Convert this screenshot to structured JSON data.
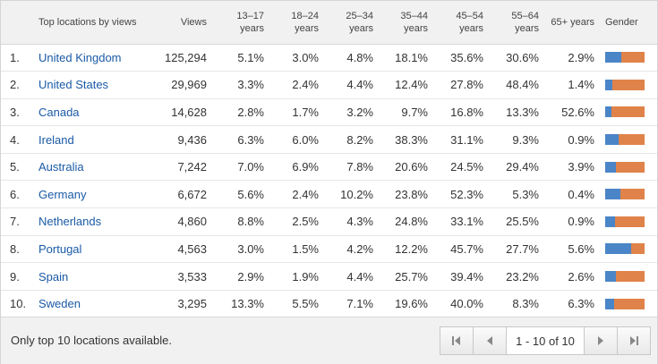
{
  "headers": {
    "location": "Top locations by views",
    "views": "Views",
    "age_13_17": "13–17 years",
    "age_18_24": "18–24 years",
    "age_25_34": "25–34 years",
    "age_35_44": "35–44 years",
    "age_45_54": "45–54 years",
    "age_55_64": "55–64 years",
    "age_65": "65+ years",
    "gender": "Gender"
  },
  "colors": {
    "male": "#4a85c7",
    "female": "#e0834a",
    "link": "#1a5aa6"
  },
  "rows": [
    {
      "rank": "1.",
      "country": "United Kingdom",
      "views": "125,294",
      "a1": "5.1%",
      "a2": "3.0%",
      "a3": "4.8%",
      "a4": "18.1%",
      "a5": "35.6%",
      "a6": "30.6%",
      "a7": "2.9%",
      "male_share": 0.42
    },
    {
      "rank": "2.",
      "country": "United States",
      "views": "29,969",
      "a1": "3.3%",
      "a2": "2.4%",
      "a3": "4.4%",
      "a4": "12.4%",
      "a5": "27.8%",
      "a6": "48.4%",
      "a7": "1.4%",
      "male_share": 0.18
    },
    {
      "rank": "3.",
      "country": "Canada",
      "views": "14,628",
      "a1": "2.8%",
      "a2": "1.7%",
      "a3": "3.2%",
      "a4": "9.7%",
      "a5": "16.8%",
      "a6": "13.3%",
      "a7": "52.6%",
      "male_share": 0.16
    },
    {
      "rank": "4.",
      "country": "Ireland",
      "views": "9,436",
      "a1": "6.3%",
      "a2": "6.0%",
      "a3": "8.2%",
      "a4": "38.3%",
      "a5": "31.1%",
      "a6": "9.3%",
      "a7": "0.9%",
      "male_share": 0.33
    },
    {
      "rank": "5.",
      "country": "Australia",
      "views": "7,242",
      "a1": "7.0%",
      "a2": "6.9%",
      "a3": "7.8%",
      "a4": "20.6%",
      "a5": "24.5%",
      "a6": "29.4%",
      "a7": "3.9%",
      "male_share": 0.27
    },
    {
      "rank": "6.",
      "country": "Germany",
      "views": "6,672",
      "a1": "5.6%",
      "a2": "2.4%",
      "a3": "10.2%",
      "a4": "23.8%",
      "a5": "52.3%",
      "a6": "5.3%",
      "a7": "0.4%",
      "male_share": 0.38
    },
    {
      "rank": "7.",
      "country": "Netherlands",
      "views": "4,860",
      "a1": "8.8%",
      "a2": "2.5%",
      "a3": "4.3%",
      "a4": "24.8%",
      "a5": "33.1%",
      "a6": "25.5%",
      "a7": "0.9%",
      "male_share": 0.25
    },
    {
      "rank": "8.",
      "country": "Portugal",
      "views": "4,563",
      "a1": "3.0%",
      "a2": "1.5%",
      "a3": "4.2%",
      "a4": "12.2%",
      "a5": "45.7%",
      "a6": "27.7%",
      "a7": "5.6%",
      "male_share": 0.65
    },
    {
      "rank": "9.",
      "country": "Spain",
      "views": "3,533",
      "a1": "2.9%",
      "a2": "1.9%",
      "a3": "4.4%",
      "a4": "25.7%",
      "a5": "39.4%",
      "a6": "23.2%",
      "a7": "2.6%",
      "male_share": 0.27
    },
    {
      "rank": "10.",
      "country": "Sweden",
      "views": "3,295",
      "a1": "13.3%",
      "a2": "5.5%",
      "a3": "7.1%",
      "a4": "19.6%",
      "a5": "40.0%",
      "a6": "8.3%",
      "a7": "6.3%",
      "male_share": 0.22
    }
  ],
  "footer": {
    "note": "Only top 10 locations available.",
    "page_info": "1 - 10 of 10"
  }
}
